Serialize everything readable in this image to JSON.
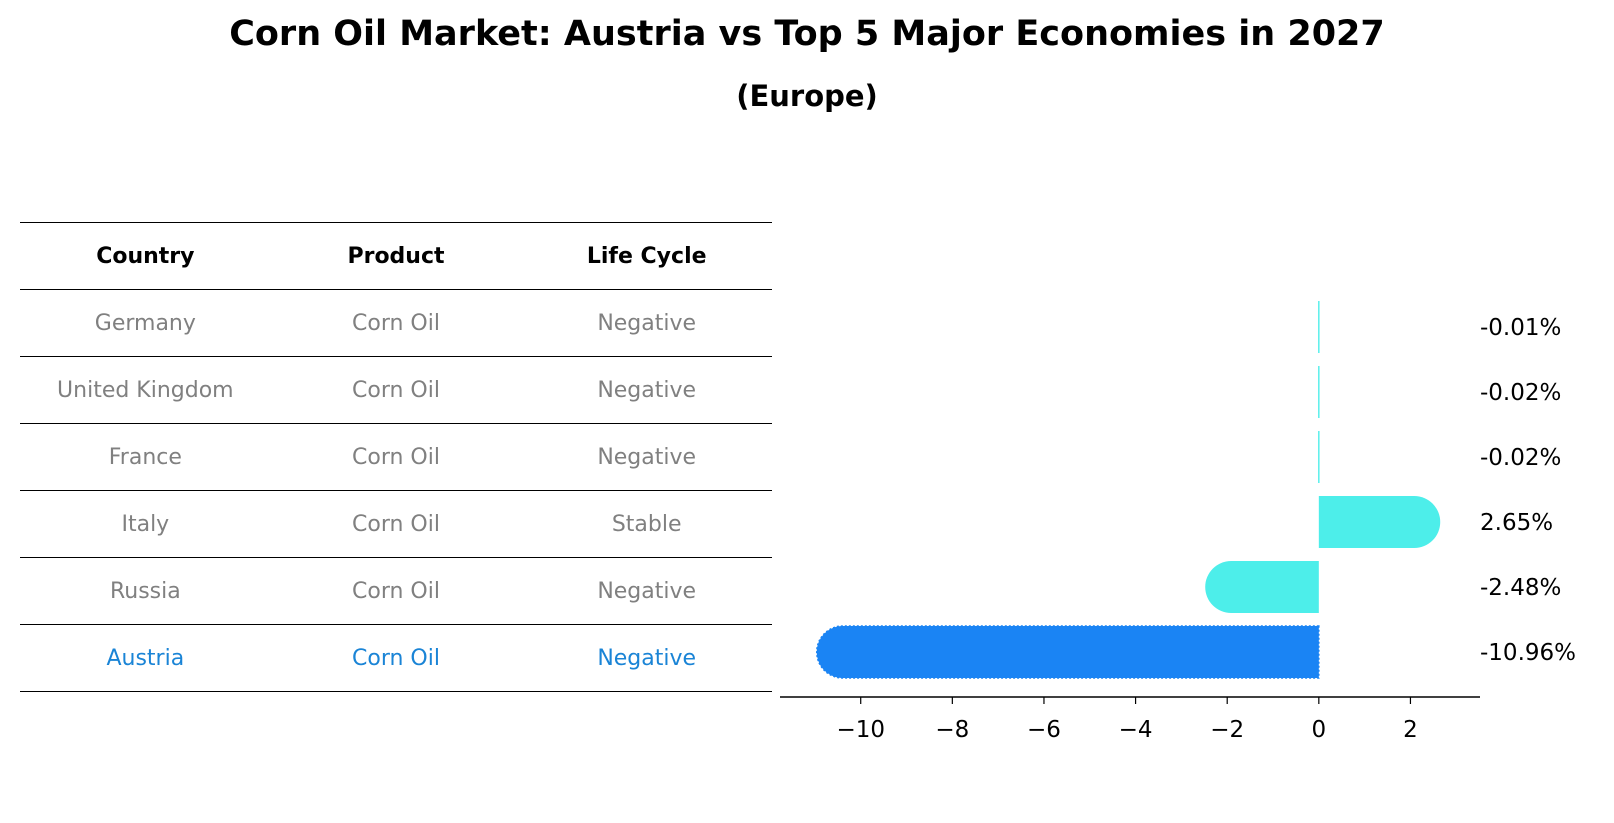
{
  "title": "Corn Oil Market: Austria vs Top 5 Major Economies in 2027",
  "subtitle": "(Europe)",
  "table": {
    "headers": [
      "Country",
      "Product",
      "Life Cycle"
    ],
    "rows": [
      {
        "country": "Germany",
        "product": "Corn Oil",
        "life_cycle": "Negative"
      },
      {
        "country": "United Kingdom",
        "product": "Corn Oil",
        "life_cycle": "Negative"
      },
      {
        "country": "France",
        "product": "Corn Oil",
        "life_cycle": "Negative"
      },
      {
        "country": "Italy",
        "product": "Corn Oil",
        "life_cycle": "Stable"
      },
      {
        "country": "Russia",
        "product": "Corn Oil",
        "life_cycle": "Negative"
      },
      {
        "country": "Austria",
        "product": "Corn Oil",
        "life_cycle": "Negative"
      }
    ],
    "highlight_color": "#1a84d6",
    "text_color": "#808080"
  },
  "chart_data": {
    "type": "bar",
    "orientation": "horizontal",
    "categories": [
      "Germany",
      "United Kingdom",
      "France",
      "Italy",
      "Russia",
      "Austria"
    ],
    "values": [
      -0.01,
      -0.02,
      -0.02,
      2.65,
      -2.48,
      -10.96
    ],
    "value_labels": [
      "-0.01%",
      "-0.02%",
      "-0.02%",
      "2.65%",
      "-2.48%",
      "-10.96%"
    ],
    "colors": [
      "#4deeea",
      "#4deeea",
      "#4deeea",
      "#4deeea",
      "#4deeea",
      "#1a84f4"
    ],
    "xlim": [
      -11.5,
      3.3
    ],
    "xticks": [
      -10,
      -8,
      -6,
      -4,
      -2,
      0,
      2
    ],
    "xtick_labels": [
      "−10",
      "−8",
      "−6",
      "−4",
      "−2",
      "0",
      "2"
    ],
    "grid": false
  }
}
